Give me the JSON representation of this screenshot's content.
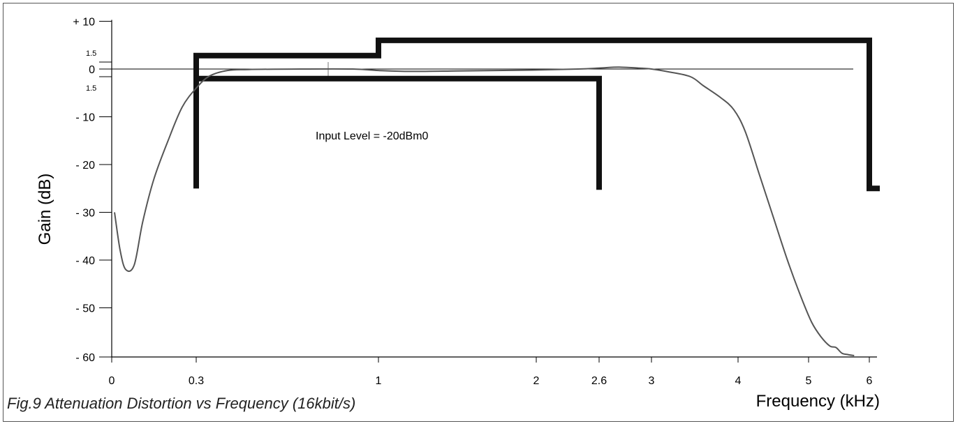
{
  "chart_data": {
    "type": "line",
    "title": "",
    "caption": "Fig.9 Attenuation Distortion vs Frequency (16kbit/s)",
    "xlabel": "Frequency (kHz)",
    "ylabel": "Gain (dB)",
    "annotation": "Input Level = -20dBm0",
    "ylim": [
      -60,
      10
    ],
    "xlim": [
      0,
      6
    ],
    "x_ticks": [
      {
        "value": 0,
        "label": "0"
      },
      {
        "value": 0.3,
        "label": "0.3"
      },
      {
        "value": 1,
        "label": "1"
      },
      {
        "value": 2,
        "label": "2"
      },
      {
        "value": 2.6,
        "label": "2.6"
      },
      {
        "value": 3,
        "label": "3"
      },
      {
        "value": 4,
        "label": "4"
      },
      {
        "value": 5,
        "label": "5"
      },
      {
        "value": 6,
        "label": "6"
      }
    ],
    "y_ticks": [
      {
        "value": 10,
        "label": "+ 10"
      },
      {
        "value": 1.5,
        "label": "1.5"
      },
      {
        "value": 0,
        "label": "0"
      },
      {
        "value": -1.5,
        "label": "1.5"
      },
      {
        "value": -10,
        "label": "- 10"
      },
      {
        "value": -20,
        "label": "- 20"
      },
      {
        "value": -30,
        "label": "- 30"
      },
      {
        "value": -40,
        "label": "- 40"
      },
      {
        "value": -50,
        "label": "- 50"
      },
      {
        "value": -60,
        "label": "- 60"
      }
    ],
    "series": [
      {
        "points": [
          [
            0.01,
            -30
          ],
          [
            0.03,
            -38
          ],
          [
            0.05,
            -42
          ],
          [
            0.08,
            -41
          ],
          [
            0.11,
            -32
          ],
          [
            0.15,
            -23
          ],
          [
            0.2,
            -15
          ],
          [
            0.25,
            -8
          ],
          [
            0.3,
            -4
          ],
          [
            0.35,
            -1.5
          ],
          [
            0.42,
            -0.3
          ],
          [
            0.5,
            -0.1
          ],
          [
            0.7,
            0
          ],
          [
            0.9,
            0
          ],
          [
            1.0,
            -0.3
          ],
          [
            1.2,
            -0.5
          ],
          [
            1.5,
            -0.4
          ],
          [
            2.0,
            -0.2
          ],
          [
            2.4,
            0
          ],
          [
            2.6,
            0.2
          ],
          [
            2.75,
            0.4
          ],
          [
            2.9,
            0.2
          ],
          [
            3.0,
            0
          ],
          [
            3.2,
            -0.6
          ],
          [
            3.45,
            -1.6
          ],
          [
            3.6,
            -3.5
          ],
          [
            3.8,
            -6
          ],
          [
            3.95,
            -8.5
          ],
          [
            4.1,
            -13
          ],
          [
            4.3,
            -22
          ],
          [
            4.5,
            -31
          ],
          [
            4.7,
            -40
          ],
          [
            4.9,
            -48
          ],
          [
            5.05,
            -53
          ],
          [
            5.2,
            -56
          ],
          [
            5.35,
            -58
          ],
          [
            5.45,
            -58.3
          ],
          [
            5.55,
            -59.5
          ],
          [
            5.65,
            -59.8
          ],
          [
            5.75,
            -60
          ]
        ]
      }
    ],
    "mask": {
      "upper": [
        [
          0.3,
          -25
        ],
        [
          0.3,
          2.8
        ],
        [
          1.0,
          2.8
        ],
        [
          1.0,
          6.0
        ],
        [
          6.0,
          6.0
        ],
        [
          6.0,
          -25
        ]
      ],
      "lower": [
        [
          0.3,
          -25
        ],
        [
          0.3,
          -2.0
        ],
        [
          2.6,
          -2.0
        ],
        [
          2.6,
          -25.3
        ]
      ]
    },
    "colors": {
      "curve": "#555555",
      "mask": "#111111",
      "axis": "#000000"
    },
    "grid": false
  }
}
